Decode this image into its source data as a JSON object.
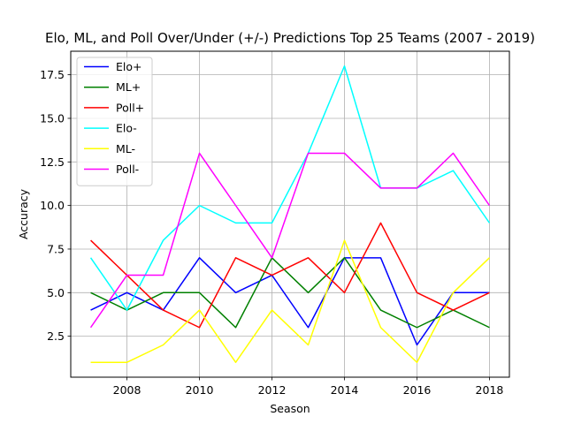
{
  "chart_data": {
    "type": "line",
    "title": "Elo, ML, and Poll Over/Under (+/-) Predictions Top 25 Teams (2007 - 2019)",
    "xlabel": "Season",
    "ylabel": "Accuracy",
    "x": [
      2007,
      2008,
      2009,
      2010,
      2011,
      2012,
      2013,
      2014,
      2015,
      2016,
      2017,
      2018
    ],
    "xlim": [
      2006.45,
      2018.55
    ],
    "ylim": [
      0.15,
      18.85
    ],
    "xticks": [
      2008,
      2010,
      2012,
      2014,
      2016,
      2018
    ],
    "yticks": [
      2.5,
      5.0,
      7.5,
      10.0,
      12.5,
      15.0,
      17.5
    ],
    "xtick_labels": [
      "2008",
      "2010",
      "2012",
      "2014",
      "2016",
      "2018"
    ],
    "ytick_labels": [
      "2.5",
      "5.0",
      "7.5",
      "10.0",
      "12.5",
      "15.0",
      "17.5"
    ],
    "grid": true,
    "legend_position": "top-left",
    "series": [
      {
        "name": "Elo+",
        "color": "#0000ff",
        "values": [
          4,
          5,
          4,
          7,
          5,
          6,
          3,
          7,
          7,
          2,
          5,
          5
        ]
      },
      {
        "name": "ML+",
        "color": "#008000",
        "values": [
          5,
          4,
          5,
          5,
          3,
          7,
          5,
          7,
          4,
          3,
          4,
          3
        ]
      },
      {
        "name": "Poll+",
        "color": "#ff0000",
        "values": [
          8,
          6,
          4,
          3,
          7,
          6,
          7,
          5,
          9,
          5,
          4,
          5
        ]
      },
      {
        "name": "Elo-",
        "color": "#00ffff",
        "values": [
          7,
          4,
          8,
          10,
          9,
          9,
          13,
          18,
          11,
          11,
          12,
          9
        ]
      },
      {
        "name": "ML-",
        "color": "#ffff00",
        "values": [
          1,
          1,
          2,
          4,
          1,
          4,
          2,
          8,
          3,
          1,
          5,
          7
        ]
      },
      {
        "name": "Poll-",
        "color": "#ff00ff",
        "values": [
          3,
          6,
          6,
          13,
          10,
          7,
          13,
          13,
          11,
          11,
          13,
          10
        ]
      }
    ]
  }
}
